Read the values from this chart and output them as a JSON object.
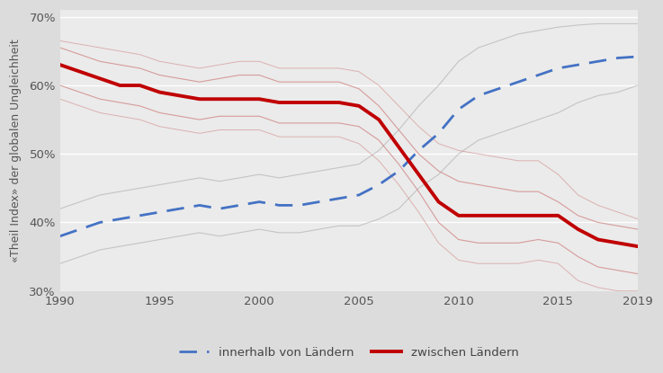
{
  "title": "",
  "ylabel": "«Theil Index» der globalen Ungleichheit",
  "background_color": "#dcdcdc",
  "plot_bg_color": "#ebebeb",
  "years": [
    1990,
    1991,
    1992,
    1993,
    1994,
    1995,
    1996,
    1997,
    1998,
    1999,
    2000,
    2001,
    2002,
    2003,
    2004,
    2005,
    2006,
    2007,
    2008,
    2009,
    2010,
    2011,
    2012,
    2013,
    2014,
    2015,
    2016,
    2017,
    2018,
    2019
  ],
  "blue_main": [
    38.0,
    39.0,
    40.0,
    40.5,
    41.0,
    41.5,
    42.0,
    42.5,
    42.0,
    42.5,
    43.0,
    42.5,
    42.5,
    43.0,
    43.5,
    44.0,
    45.5,
    47.5,
    50.5,
    53.0,
    56.5,
    58.5,
    59.5,
    60.5,
    61.5,
    62.5,
    63.0,
    63.5,
    64.0,
    64.2
  ],
  "blue_upper": [
    42.0,
    43.0,
    44.0,
    44.5,
    45.0,
    45.5,
    46.0,
    46.5,
    46.0,
    46.5,
    47.0,
    46.5,
    47.0,
    47.5,
    48.0,
    48.5,
    50.5,
    53.5,
    57.0,
    60.0,
    63.5,
    65.5,
    66.5,
    67.5,
    68.0,
    68.5,
    68.8,
    69.0,
    69.0,
    69.0
  ],
  "blue_lower": [
    34.0,
    35.0,
    36.0,
    36.5,
    37.0,
    37.5,
    38.0,
    38.5,
    38.0,
    38.5,
    39.0,
    38.5,
    38.5,
    39.0,
    39.5,
    39.5,
    40.5,
    42.0,
    45.0,
    47.0,
    50.0,
    52.0,
    53.0,
    54.0,
    55.0,
    56.0,
    57.5,
    58.5,
    59.0,
    60.0
  ],
  "red_main": [
    63.0,
    62.0,
    61.0,
    60.0,
    60.0,
    59.0,
    58.5,
    58.0,
    58.0,
    58.0,
    58.0,
    57.5,
    57.5,
    57.5,
    57.5,
    57.0,
    55.0,
    51.0,
    47.0,
    43.0,
    41.0,
    41.0,
    41.0,
    41.0,
    41.0,
    41.0,
    39.0,
    37.5,
    37.0,
    36.5
  ],
  "red_upper": [
    65.5,
    64.5,
    63.5,
    63.0,
    62.5,
    61.5,
    61.0,
    60.5,
    61.0,
    61.5,
    61.5,
    60.5,
    60.5,
    60.5,
    60.5,
    59.5,
    57.0,
    53.5,
    50.0,
    47.5,
    46.0,
    45.5,
    45.0,
    44.5,
    44.5,
    43.0,
    41.0,
    40.0,
    39.5,
    39.0
  ],
  "red_lower": [
    60.0,
    59.0,
    58.0,
    57.5,
    57.0,
    56.0,
    55.5,
    55.0,
    55.5,
    55.5,
    55.5,
    54.5,
    54.5,
    54.5,
    54.5,
    54.0,
    52.0,
    48.5,
    44.5,
    40.0,
    37.5,
    37.0,
    37.0,
    37.0,
    37.5,
    37.0,
    35.0,
    33.5,
    33.0,
    32.5
  ],
  "red_outer_upper": [
    66.5,
    66.0,
    65.5,
    65.0,
    64.5,
    63.5,
    63.0,
    62.5,
    63.0,
    63.5,
    63.5,
    62.5,
    62.5,
    62.5,
    62.5,
    62.0,
    60.0,
    57.0,
    54.0,
    51.5,
    50.5,
    50.0,
    49.5,
    49.0,
    49.0,
    47.0,
    44.0,
    42.5,
    41.5,
    40.5
  ],
  "red_outer_lower": [
    58.0,
    57.0,
    56.0,
    55.5,
    55.0,
    54.0,
    53.5,
    53.0,
    53.5,
    53.5,
    53.5,
    52.5,
    52.5,
    52.5,
    52.5,
    51.5,
    49.0,
    45.5,
    41.5,
    37.0,
    34.5,
    34.0,
    34.0,
    34.0,
    34.5,
    34.0,
    31.5,
    30.5,
    30.0,
    30.0
  ],
  "ylim": [
    30,
    71
  ],
  "yticks": [
    30,
    40,
    50,
    60,
    70
  ],
  "ytick_labels": [
    "30%",
    "40%",
    "50%",
    "60%",
    "70%"
  ],
  "xlim": [
    1990,
    2019
  ],
  "xticks": [
    1990,
    1995,
    2000,
    2005,
    2010,
    2015,
    2019
  ],
  "blue_color": "#4472c4",
  "red_color": "#c00000",
  "red_band_color": "#d08080",
  "blue_band_color": "#aaaaaa",
  "legend_blue_label": "innerhalb von Ländern",
  "legend_red_label": "zwischen Ländern"
}
